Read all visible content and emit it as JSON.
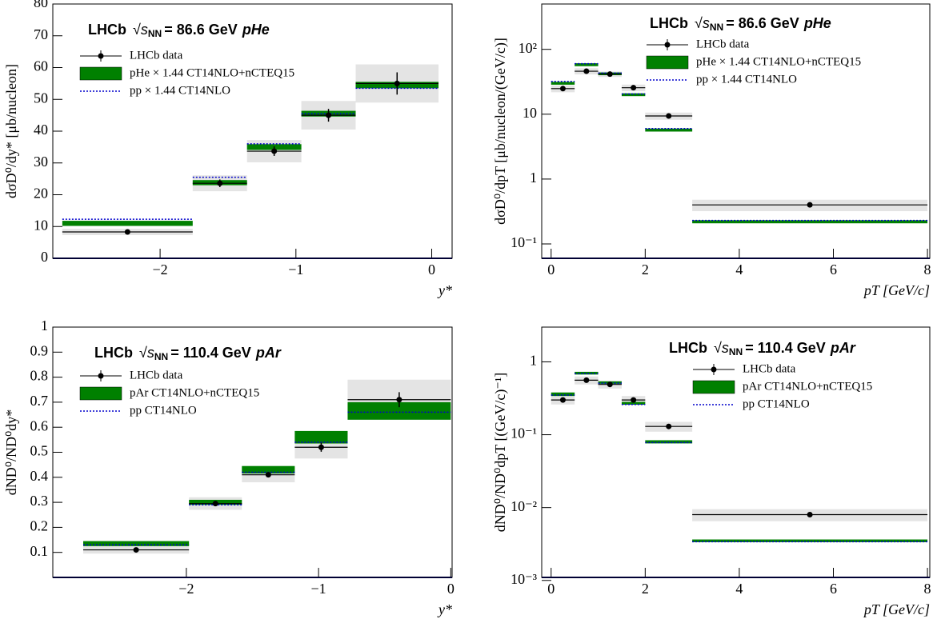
{
  "chart_data": [
    {
      "type": "histogram",
      "log_y": false,
      "header": {
        "experiment": "LHCb",
        "sqrt_s": "√s",
        "sqrt_s_sub": "NN",
        "energy": "= 86.6 GeV",
        "system": "pHe"
      },
      "xlabel": "y*",
      "ylabel": "dσD⁰/dy* [μb/nucleon]",
      "bins": [
        -2.72,
        -1.76,
        -1.36,
        -0.96,
        -0.56,
        0.05
      ],
      "xlim": [
        -2.79,
        0.15
      ],
      "xticks": [
        {
          "value": -2,
          "label": "−2"
        },
        {
          "value": -1,
          "label": "−1"
        },
        0
      ],
      "ylim": [
        0,
        80
      ],
      "yticks": [
        0,
        10,
        20,
        30,
        40,
        50,
        60,
        70,
        80
      ],
      "series": [
        {
          "name": "LHCb data",
          "color": "#000000",
          "style": "points",
          "values": [
            8.3,
            23.6,
            33.7,
            45,
            55
          ],
          "errors": [
            0.5,
            1.2,
            1.5,
            2,
            3.5
          ],
          "sys_errors": [
            1,
            2.5,
            3.5,
            4.5,
            6
          ]
        },
        {
          "name": "pHe × 1.44   CT14NLO+nCTEQ15",
          "color": "#008000",
          "style": "band",
          "values": [
            11,
            23.8,
            35,
            45.5,
            54.5
          ],
          "errors": [
            0.8,
            0.8,
            0.9,
            0.9,
            1
          ]
        },
        {
          "name": "pp  × 1.44   CT14NLO",
          "color": "#0000cc",
          "style": "dotted",
          "values": [
            12.3,
            25.5,
            36,
            45.5,
            53.5
          ]
        }
      ]
    },
    {
      "type": "histogram",
      "log_y": true,
      "header": {
        "experiment": "LHCb",
        "sqrt_s": "√s",
        "sqrt_s_sub": "NN",
        "energy": "= 86.6 GeV",
        "system": "pHe"
      },
      "xlabel": "pT [GeV/c]",
      "ylabel": "dσD⁰/dpT [μb/nucleon/(GeV/c)]",
      "bins": [
        0,
        0.5,
        1,
        1.5,
        2,
        3,
        8
      ],
      "xlim": [
        -0.2,
        8.05
      ],
      "xticks": [
        0,
        2,
        4,
        6,
        8
      ],
      "ylim": [
        0.06,
        500
      ],
      "yticks": [
        {
          "value": 0.1,
          "label": "10⁻¹"
        },
        1,
        10,
        {
          "value": 100,
          "label": "10²"
        }
      ],
      "series": [
        {
          "name": "LHCb data",
          "color": "#000000",
          "style": "points",
          "values": [
            24.8,
            46,
            41.5,
            25.6,
            9.4,
            0.4
          ],
          "errors": [
            2,
            3,
            3,
            2,
            0.8,
            0.03
          ],
          "sys_errors": [
            3,
            5,
            4,
            3,
            1.2,
            0.08
          ]
        },
        {
          "name": "pHe × 1.44   CT14NLO+nCTEQ15",
          "color": "#008000",
          "style": "band",
          "values": [
            30,
            58,
            42,
            20,
            5.7,
            0.22
          ],
          "errors": [
            1.5,
            3,
            2,
            1,
            0.3,
            0.012
          ]
        },
        {
          "name": "pp  × 1.44   CT14NLO",
          "color": "#0000cc",
          "style": "dotted",
          "values": [
            32,
            60,
            43,
            20.5,
            6,
            0.23
          ]
        }
      ]
    },
    {
      "type": "histogram",
      "log_y": false,
      "header": {
        "experiment": "LHCb",
        "sqrt_s": "√s",
        "sqrt_s_sub": "NN",
        "energy": "= 110.4 GeV",
        "system": "pAr"
      },
      "xlabel": "y*",
      "ylabel": "dND⁰/ND⁰dy*",
      "bins": [
        -2.78,
        -1.98,
        -1.58,
        -1.18,
        -0.78,
        0
      ],
      "xlim": [
        -3.01,
        0.01
      ],
      "xticks": [
        {
          "value": -2,
          "label": "−2"
        },
        {
          "value": -1,
          "label": "−1"
        },
        0
      ],
      "ylim": [
        0,
        1
      ],
      "yticks": [
        0.1,
        0.2,
        0.3,
        0.4,
        0.5,
        0.6,
        0.7,
        0.8,
        0.9,
        1
      ],
      "series": [
        {
          "name": "LHCb data",
          "color": "#000000",
          "style": "points",
          "values": [
            0.11,
            0.295,
            0.41,
            0.52,
            0.71
          ],
          "errors": [
            0.005,
            0.008,
            0.01,
            0.018,
            0.03
          ],
          "sys_errors": [
            0.015,
            0.025,
            0.03,
            0.045,
            0.08
          ]
        },
        {
          "name": "pAr   CT14NLO+nCTEQ15",
          "color": "#008000",
          "style": "band",
          "values": [
            0.135,
            0.3,
            0.43,
            0.56,
            0.665
          ],
          "errors": [
            0.01,
            0.01,
            0.015,
            0.025,
            0.035
          ]
        },
        {
          "name": "pp   CT14NLO",
          "color": "#0000cc",
          "style": "dotted",
          "values": [
            0.13,
            0.29,
            0.42,
            0.54,
            0.66
          ]
        }
      ]
    },
    {
      "type": "histogram",
      "log_y": true,
      "header": {
        "experiment": "LHCb",
        "sqrt_s": "√s",
        "sqrt_s_sub": "NN",
        "energy": "= 110.4 GeV",
        "system": "pAr"
      },
      "xlabel": "pT [GeV/c]",
      "ylabel": "dND⁰/ND⁰dpT [(GeV/c)⁻¹]",
      "bins": [
        0,
        0.5,
        1,
        1.5,
        2,
        3,
        8
      ],
      "xlim": [
        -0.2,
        8.05
      ],
      "xticks": [
        0,
        2,
        4,
        6,
        8
      ],
      "ylim": [
        0.0011,
        3
      ],
      "yticks": [
        {
          "value": 0.001,
          "label": "10⁻³"
        },
        {
          "value": 0.01,
          "label": "10⁻²"
        },
        {
          "value": 0.1,
          "label": "10⁻¹"
        },
        1
      ],
      "series": [
        {
          "name": "LHCb data",
          "color": "#000000",
          "style": "points",
          "values": [
            0.3,
            0.56,
            0.49,
            0.3,
            0.13,
            0.008
          ],
          "errors": [
            0.02,
            0.04,
            0.03,
            0.02,
            0.008,
            0.0006
          ],
          "sys_errors": [
            0.04,
            0.07,
            0.06,
            0.04,
            0.02,
            0.0015
          ]
        },
        {
          "name": "pAr   CT14NLO+nCTEQ15",
          "color": "#008000",
          "style": "band",
          "values": [
            0.36,
            0.7,
            0.52,
            0.27,
            0.08,
            0.0035
          ],
          "errors": [
            0.02,
            0.03,
            0.02,
            0.012,
            0.004,
            0.00015
          ]
        },
        {
          "name": "pp   CT14NLO",
          "color": "#0000cc",
          "style": "dotted",
          "values": [
            0.35,
            0.69,
            0.51,
            0.26,
            0.078,
            0.0034
          ]
        }
      ]
    }
  ]
}
